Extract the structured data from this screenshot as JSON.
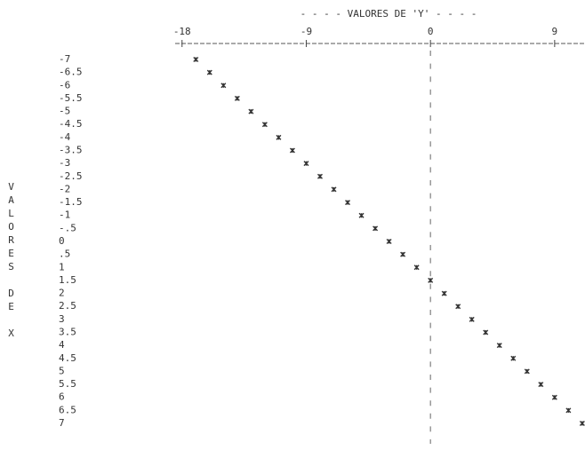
{
  "chart_data": {
    "type": "scatter",
    "title": "- - - - VALORES DE 'Y' - - - -",
    "x_label": "VALORES DE X",
    "x": [
      -7,
      -6.5,
      -6,
      -5.5,
      -5,
      -4.5,
      -4,
      -3.5,
      -3,
      -2.5,
      -2,
      -1.5,
      -1,
      -0.5,
      0,
      0.5,
      1,
      1.5,
      2,
      2.5,
      3,
      3.5,
      4,
      4.5,
      5,
      5.5,
      6,
      6.5,
      7
    ],
    "values": [
      -17,
      -16,
      -15,
      -14,
      -13,
      -12,
      -11,
      -10,
      -9,
      -8,
      -7,
      -6,
      -5,
      -4,
      -3,
      -2,
      -1,
      0,
      1,
      2,
      3,
      4,
      5,
      6,
      7,
      8,
      9,
      10,
      11
    ],
    "xlim": [
      -7,
      7
    ],
    "xticks": [
      -7,
      -6.5,
      -6,
      -5.5,
      -5,
      -4.5,
      -4,
      -3.5,
      -3,
      -2.5,
      -2,
      -1.5,
      -1,
      {
        "value": -0.5,
        "label": "-.5"
      },
      0,
      {
        "value": 0.5,
        "label": ".5"
      },
      1,
      1.5,
      2,
      2.5,
      3,
      3.5,
      4,
      4.5,
      5,
      5.5,
      6,
      6.5,
      7
    ],
    "ylim": [
      -18.5,
      11.2
    ],
    "yticks": [
      -18,
      -9,
      0,
      9
    ],
    "color": "#333333"
  }
}
